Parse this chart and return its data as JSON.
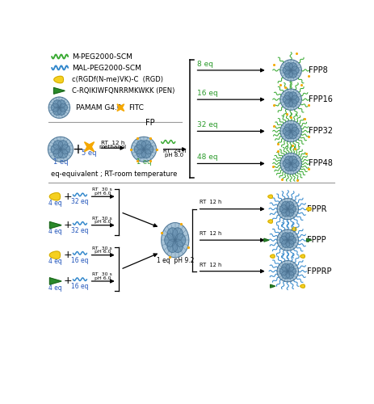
{
  "bg_color": "#ffffff",
  "pamam_light": "#a8c4d8",
  "pamam_dark": "#7099b8",
  "pamam_stroke": "#4a7090",
  "fitc_color": "#f5a800",
  "peg_green": "#3aaa33",
  "peg_blue": "#3388cc",
  "rgd_color": "#f5d020",
  "rgd_stroke": "#c8a000",
  "pen_color": "#2a8a2a",
  "pen_stroke": "#1a5a1a",
  "green_text": "#2a9a2a",
  "blue_text": "#2255bb",
  "black": "#000000",
  "gray": "#888888",
  "fpp_labels": [
    "FPP8",
    "FPP16",
    "FPP32",
    "FPP48"
  ],
  "fpp_eq": [
    "8 eq",
    "16 eq",
    "32 eq",
    "48 eq"
  ],
  "fpp_npeg": [
    8,
    16,
    24,
    32
  ],
  "fpp_ndots": [
    4,
    5,
    6,
    7
  ],
  "bottom_labels": [
    "FPPR",
    "FPPP",
    "FPPRP"
  ]
}
